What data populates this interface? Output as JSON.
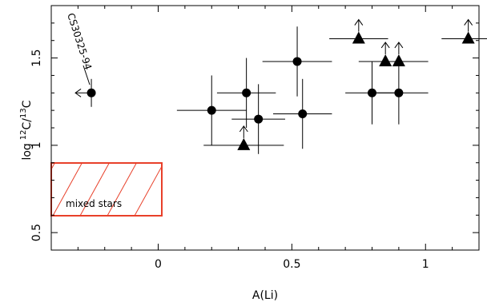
{
  "chart_data": {
    "type": "scatter",
    "title": "",
    "xlabel": "A(Li)",
    "ylabel_base": "log",
    "ylabel_num_sup": "12",
    "ylabel_num_elem": "C/",
    "ylabel_den_sup": "13",
    "ylabel_den_elem": "C",
    "xlim": [
      -0.4,
      1.2
    ],
    "ylim": [
      0.4,
      1.8
    ],
    "x_ticks": [
      {
        "value": 0,
        "label": "0"
      },
      {
        "value": 0.5,
        "label": "0.5"
      },
      {
        "value": 1,
        "label": "1"
      }
    ],
    "y_ticks": [
      {
        "value": 0.5,
        "label": "0.5"
      },
      {
        "value": 1,
        "label": "1"
      },
      {
        "value": 1.5,
        "label": "1.5"
      }
    ],
    "series": [
      {
        "marker": "circle",
        "points": [
          {
            "x": -0.25,
            "y": 1.3,
            "xerr": 0,
            "yerr": 0.08,
            "x_upper_limit": true
          },
          {
            "x": 0.2,
            "y": 1.2,
            "xerr": 0.13,
            "yerr": 0.2
          },
          {
            "x": 0.33,
            "y": 1.3,
            "xerr": 0.11,
            "yerr": 0.2
          },
          {
            "x": 0.375,
            "y": 1.15,
            "xerr": 0.1,
            "yerr": 0.2
          },
          {
            "x": 0.52,
            "y": 1.48,
            "xerr": 0.13,
            "yerr": 0.2
          },
          {
            "x": 0.54,
            "y": 1.18,
            "xerr": 0.11,
            "yerr": 0.2
          },
          {
            "x": 0.8,
            "y": 1.3,
            "xerr": 0.1,
            "yerr": 0.18
          },
          {
            "x": 0.9,
            "y": 1.3,
            "xerr": 0.11,
            "yerr": 0.18
          }
        ]
      },
      {
        "marker": "triangle",
        "lower_limit": true,
        "points": [
          {
            "x": 0.32,
            "y": 1.0,
            "xerr": 0.15
          },
          {
            "x": 0.75,
            "y": 1.61,
            "xerr": 0.11
          },
          {
            "x": 0.85,
            "y": 1.48,
            "xerr": 0.1
          },
          {
            "x": 0.9,
            "y": 1.48,
            "xerr": 0.11
          },
          {
            "x": 1.16,
            "y": 1.61,
            "xerr": 0.1
          }
        ]
      }
    ],
    "annotations": [
      {
        "text": "CS30325-94"
      },
      {
        "text": "mixed stars"
      }
    ],
    "region": {
      "x": [
        -0.4,
        0.0
      ],
      "y": [
        0.6,
        0.9
      ],
      "color": "#e8402a",
      "hatch": "diagonal",
      "label": "mixed stars"
    },
    "grid": false,
    "legend": "none"
  }
}
